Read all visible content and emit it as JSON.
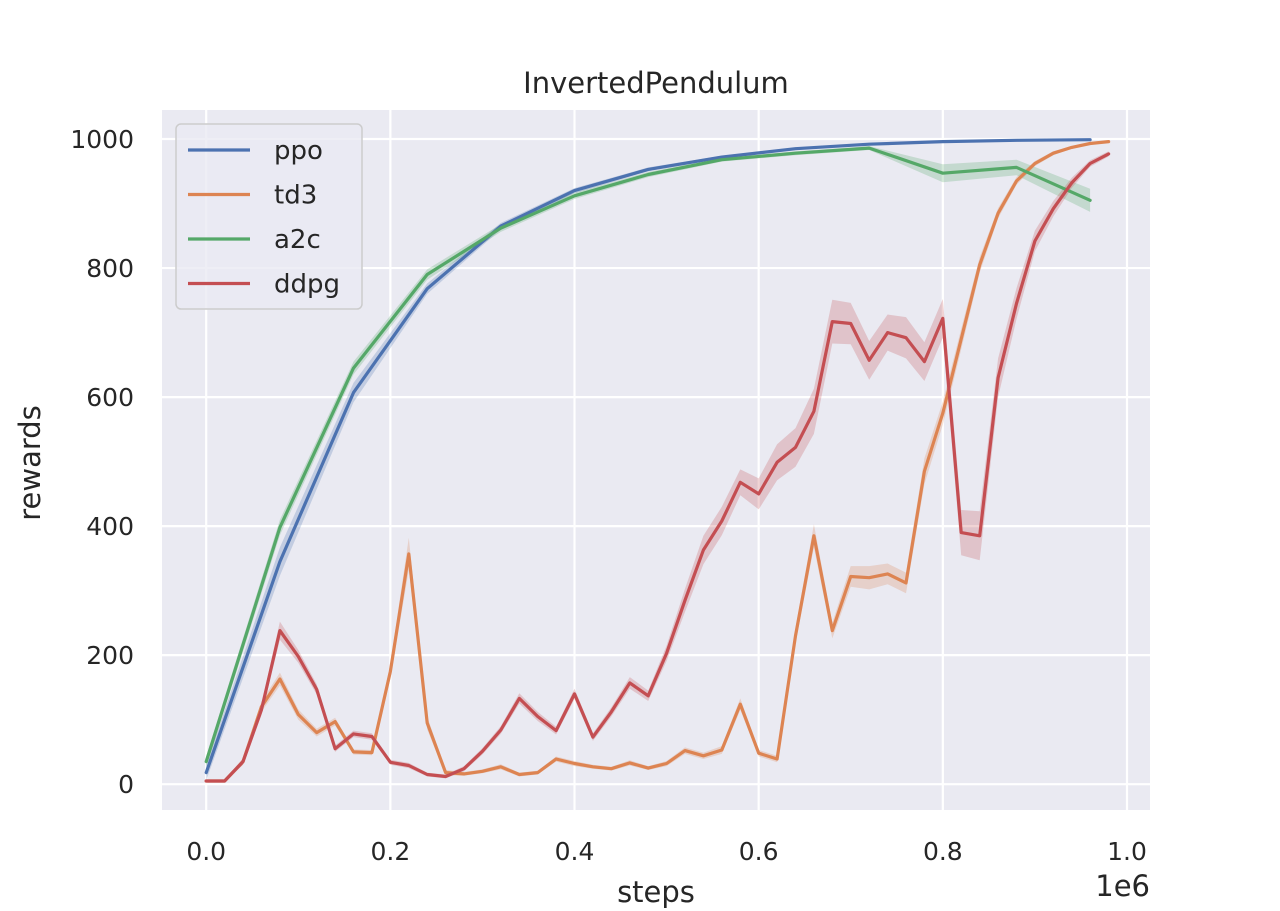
{
  "chart_data": {
    "type": "line",
    "title": "InvertedPendulum",
    "xlabel": "steps",
    "ylabel": "rewards",
    "x_offset_text": "1e6",
    "xlim": [
      -0.048,
      1.025
    ],
    "ylim": [
      -40,
      1045
    ],
    "xticks": [
      0.0,
      0.2,
      0.4,
      0.6,
      0.8,
      1.0
    ],
    "xtick_labels": [
      "0.0",
      "0.2",
      "0.4",
      "0.6",
      "0.8",
      "1.0"
    ],
    "yticks": [
      0,
      200,
      400,
      600,
      800,
      1000
    ],
    "ytick_labels": [
      "0",
      "200",
      "400",
      "600",
      "800",
      "1000"
    ],
    "grid": true,
    "legend_position": "top-left",
    "series": [
      {
        "name": "ppo",
        "color": "#4c72b0",
        "x": [
          0.0,
          0.08,
          0.16,
          0.24,
          0.32,
          0.4,
          0.48,
          0.56,
          0.64,
          0.72,
          0.8,
          0.88,
          0.96
        ],
        "y": [
          18,
          345,
          607,
          768,
          865,
          920,
          953,
          972,
          985,
          992,
          996,
          998,
          999
        ],
        "band": [
          12,
          22,
          15,
          8,
          5,
          4,
          3,
          2,
          2,
          1,
          1,
          1,
          1
        ]
      },
      {
        "name": "td3",
        "color": "#dd8452",
        "x": [
          0.0,
          0.02,
          0.04,
          0.06,
          0.08,
          0.1,
          0.12,
          0.14,
          0.16,
          0.18,
          0.2,
          0.22,
          0.24,
          0.26,
          0.28,
          0.3,
          0.32,
          0.34,
          0.36,
          0.38,
          0.4,
          0.42,
          0.44,
          0.46,
          0.48,
          0.5,
          0.52,
          0.54,
          0.56,
          0.58,
          0.6,
          0.62,
          0.64,
          0.66,
          0.68,
          0.7,
          0.72,
          0.74,
          0.76,
          0.78,
          0.8,
          0.82,
          0.84,
          0.86,
          0.88,
          0.9,
          0.92,
          0.94,
          0.96,
          0.98
        ],
        "y": [
          5,
          5,
          35,
          120,
          163,
          108,
          80,
          97,
          50,
          49,
          175,
          357,
          95,
          18,
          16,
          20,
          27,
          15,
          18,
          39,
          32,
          27,
          24,
          33,
          25,
          32,
          52,
          44,
          53,
          124,
          48,
          39,
          230,
          385,
          238,
          322,
          320,
          326,
          312,
          485,
          575,
          690,
          805,
          885,
          935,
          962,
          978,
          987,
          993,
          996
        ],
        "band": [
          2,
          2,
          5,
          8,
          10,
          8,
          6,
          6,
          4,
          4,
          12,
          25,
          10,
          4,
          3,
          3,
          4,
          3,
          3,
          4,
          4,
          3,
          3,
          4,
          3,
          4,
          5,
          5,
          6,
          9,
          5,
          5,
          12,
          18,
          12,
          16,
          18,
          16,
          16,
          20,
          18,
          16,
          12,
          8,
          6,
          4,
          3,
          2,
          2,
          1
        ]
      },
      {
        "name": "a2c",
        "color": "#55a868",
        "x": [
          0.0,
          0.08,
          0.16,
          0.24,
          0.32,
          0.4,
          0.48,
          0.56,
          0.64,
          0.72,
          0.8,
          0.88,
          0.96
        ],
        "y": [
          35,
          398,
          645,
          790,
          862,
          912,
          945,
          968,
          978,
          986,
          947,
          956,
          905
        ],
        "band": [
          8,
          12,
          10,
          8,
          6,
          5,
          4,
          3,
          3,
          3,
          14,
          12,
          18
        ]
      },
      {
        "name": "ddpg",
        "color": "#c44e52",
        "x": [
          0.0,
          0.02,
          0.04,
          0.06,
          0.08,
          0.1,
          0.12,
          0.14,
          0.16,
          0.18,
          0.2,
          0.22,
          0.24,
          0.26,
          0.28,
          0.3,
          0.32,
          0.34,
          0.36,
          0.38,
          0.4,
          0.42,
          0.44,
          0.46,
          0.48,
          0.5,
          0.52,
          0.54,
          0.56,
          0.58,
          0.6,
          0.62,
          0.64,
          0.66,
          0.68,
          0.7,
          0.72,
          0.74,
          0.76,
          0.78,
          0.8,
          0.82,
          0.84,
          0.86,
          0.88,
          0.9,
          0.92,
          0.94,
          0.96,
          0.98
        ],
        "y": [
          5,
          5,
          35,
          115,
          238,
          198,
          147,
          55,
          78,
          74,
          34,
          29,
          15,
          12,
          24,
          51,
          84,
          133,
          105,
          83,
          140,
          73,
          112,
          157,
          137,
          203,
          285,
          363,
          408,
          468,
          450,
          499,
          522,
          578,
          717,
          714,
          657,
          700,
          692,
          655,
          722,
          390,
          385,
          630,
          745,
          842,
          892,
          932,
          962,
          977
        ],
        "band": [
          2,
          2,
          5,
          8,
          14,
          10,
          8,
          5,
          5,
          5,
          4,
          4,
          3,
          3,
          4,
          5,
          6,
          8,
          7,
          6,
          8,
          6,
          7,
          9,
          8,
          12,
          18,
          22,
          22,
          20,
          24,
          28,
          30,
          35,
          34,
          32,
          30,
          28,
          32,
          30,
          30,
          35,
          38,
          30,
          24,
          16,
          12,
          8,
          5,
          4
        ]
      }
    ]
  }
}
